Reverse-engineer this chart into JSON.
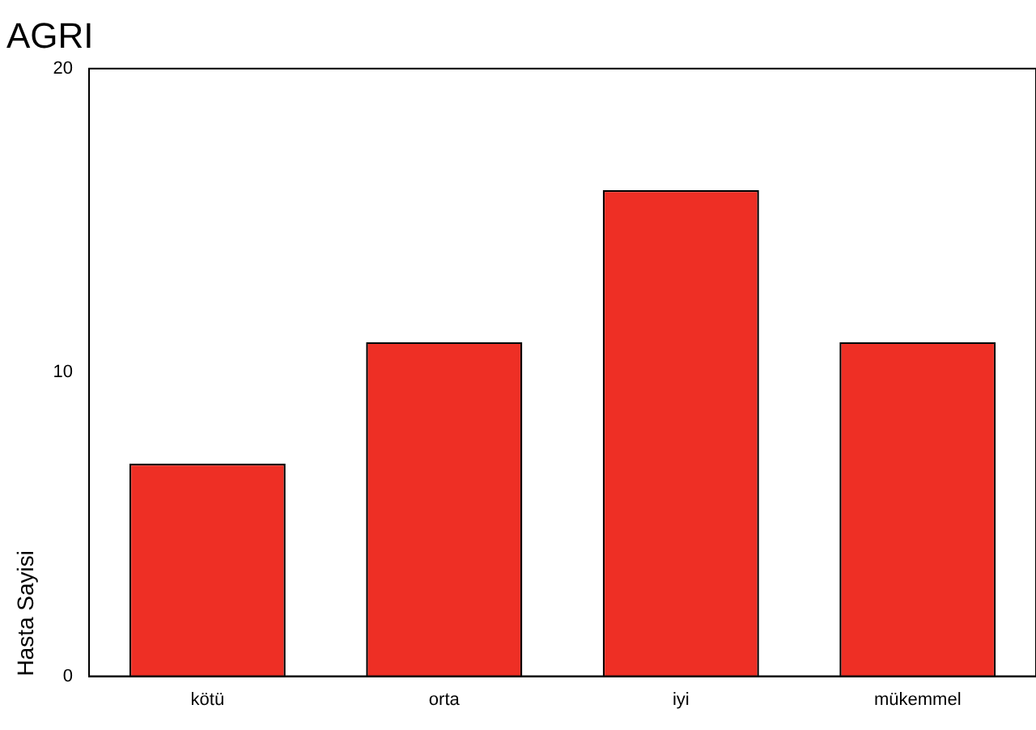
{
  "chart_data": {
    "type": "bar",
    "title": "AGRI",
    "ylabel": "Hasta Sayisi",
    "categories": [
      "kötü",
      "orta",
      "iyi",
      "mükemmel"
    ],
    "values": [
      7,
      11,
      16,
      11
    ],
    "color": "#ee2f25",
    "ylim": [
      0,
      20
    ],
    "yticks": [
      0,
      10,
      20
    ],
    "grid": false,
    "legend": false
  }
}
